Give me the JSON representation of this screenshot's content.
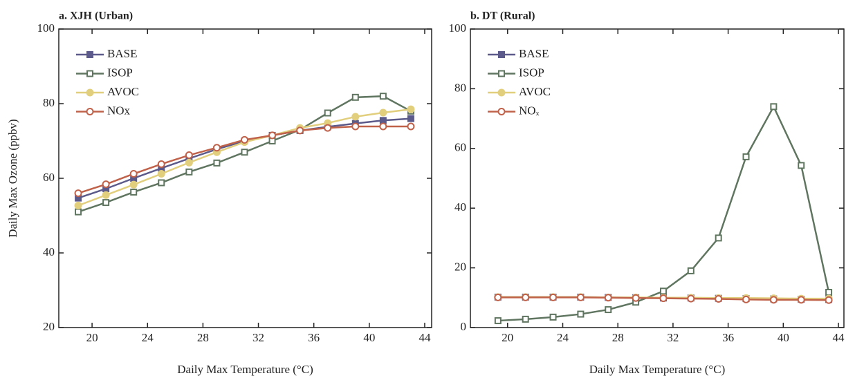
{
  "chart_data": [
    {
      "type": "line",
      "title": "a. XJH (Urban)",
      "x_label": "Daily Max Temperature (°C)",
      "y_label": "Daily Max Ozone (ppbv)",
      "x": [
        19,
        21,
        23,
        25,
        27,
        29,
        31,
        33,
        35,
        37,
        39,
        41,
        43
      ],
      "xlim": [
        17.6,
        44.5
      ],
      "xticks": [
        20,
        24,
        28,
        32,
        36,
        40,
        44
      ],
      "ylim": [
        20,
        100
      ],
      "yticks": [
        20,
        40,
        60,
        80,
        100
      ],
      "legend": "upper left",
      "series": [
        {
          "name": "BASE",
          "color": "#5b5a8a",
          "marker": "square",
          "filled": true,
          "values": [
            54.7,
            57.2,
            60,
            62.7,
            65.3,
            67.8,
            70,
            71.5,
            72.8,
            73.8,
            74.7,
            75.5,
            76
          ]
        },
        {
          "name": "ISOP",
          "color": "#5f7560",
          "marker": "square",
          "filled": false,
          "values": [
            51,
            53.5,
            56.3,
            58.8,
            61.7,
            64.1,
            67,
            70,
            73,
            77.5,
            81.7,
            82,
            78
          ]
        },
        {
          "name": "AVOC",
          "color": "#e2cf7e",
          "marker": "circle",
          "filled": true,
          "values": [
            52.7,
            55.5,
            58.3,
            61.2,
            64.2,
            67,
            69.7,
            71.5,
            73.5,
            74.8,
            76.5,
            77.6,
            78.5
          ]
        },
        {
          "name": "NOx",
          "color": "#c0614a",
          "marker": "circle",
          "filled": false,
          "values": [
            56,
            58.4,
            61.2,
            63.8,
            66.2,
            68.2,
            70.3,
            71.5,
            72.8,
            73.5,
            73.9,
            73.9,
            73.9
          ]
        }
      ]
    },
    {
      "type": "line",
      "title": "b. DT (Rural)",
      "x_label": "Daily Max Temperature (°C)",
      "x": [
        19.3,
        21.3,
        23.3,
        25.3,
        27.3,
        29.3,
        31.3,
        33.3,
        35.3,
        37.3,
        39.3,
        41.3,
        43.3
      ],
      "xlim": [
        17.3,
        44.4
      ],
      "xticks": [
        20,
        24,
        28,
        32,
        36,
        40,
        44
      ],
      "ylim": [
        0,
        100
      ],
      "yticks": [
        0,
        20,
        40,
        60,
        80,
        100
      ],
      "legend": "upper left",
      "series": [
        {
          "name": "BASE",
          "color": "#5b5a8a",
          "marker": "square",
          "filled": true,
          "values": [
            10.2,
            10.2,
            10.2,
            10.2,
            10.1,
            10,
            9.9,
            9.9,
            9.8,
            9.7,
            9.6,
            9.5,
            9.4
          ]
        },
        {
          "name": "ISOP",
          "color": "#5f7560",
          "marker": "square",
          "filled": false,
          "values": [
            2.3,
            2.8,
            3.5,
            4.5,
            6,
            8.5,
            12.2,
            19,
            30,
            57.2,
            74,
            54.3,
            11.8
          ]
        },
        {
          "name": "AVOC",
          "color": "#e2cf7e",
          "marker": "circle",
          "filled": true,
          "values": [
            10.2,
            10.2,
            10.2,
            10.2,
            10.1,
            10.1,
            10,
            10,
            9.9,
            9.9,
            9.8,
            9.7,
            9.7
          ]
        },
        {
          "name": "NOₓ",
          "color": "#c0614a",
          "marker": "circle",
          "filled": false,
          "values": [
            10.1,
            10.1,
            10.1,
            10.1,
            10,
            9.9,
            9.8,
            9.7,
            9.6,
            9.4,
            9.3,
            9.3,
            9.2
          ]
        }
      ]
    }
  ]
}
